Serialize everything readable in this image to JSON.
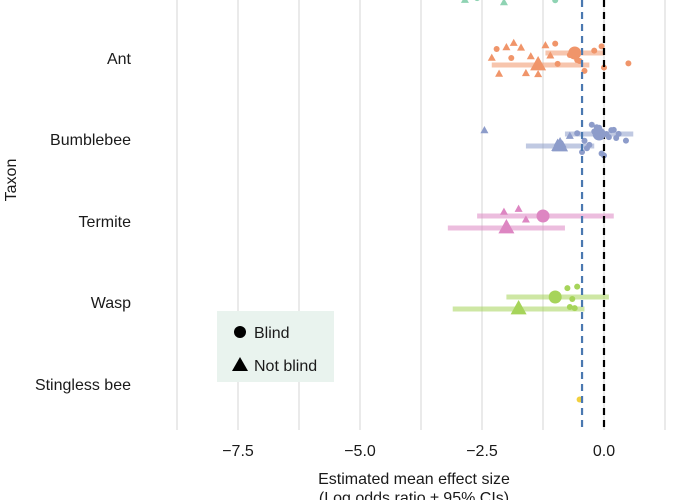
{
  "chart_data": {
    "type": "scatter",
    "xlabel": "Estimated mean effect size",
    "xlabel_line2": "(Log odds ratio ± 95% CIs)",
    "ylabel": "Taxon",
    "xlim": [
      -8.8,
      1.3
    ],
    "x_ticks": [
      -7.5,
      -5.0,
      -2.5,
      0.0
    ],
    "x_tick_labels": [
      "−7.5",
      "−5.0",
      "−2.5",
      "0.0"
    ],
    "x_minor_gridlines": [
      -8.75,
      -6.25,
      -3.75,
      -1.25,
      1.25
    ],
    "reference_lines": [
      {
        "x": 0.0,
        "style": "dashed",
        "color": "#000000"
      },
      {
        "x": -0.45,
        "style": "dashed",
        "color": "#4a78b0"
      }
    ],
    "categories": [
      "Ant",
      "Bumblebee",
      "Termite",
      "Wasp",
      "Stingless bee"
    ],
    "category_colors": {
      "Top": "#8fd3b3",
      "Ant": "#f0956a",
      "Bumblebee": "#8d9cca",
      "Termite": "#dd86c2",
      "Wasp": "#a6d45a",
      "Stingless bee": "#f2d03e"
    },
    "legend": {
      "placement": "bottom-left",
      "entries": [
        {
          "label": "Blind",
          "shape": "circle"
        },
        {
          "label": "Not blind",
          "shape": "triangle"
        }
      ]
    },
    "estimates": [
      {
        "taxon": "Ant",
        "group": "Blind",
        "mean": -0.6,
        "lo": -1.2,
        "hi": 0.0
      },
      {
        "taxon": "Ant",
        "group": "Not blind",
        "mean": -1.35,
        "lo": -2.3,
        "hi": -0.3
      },
      {
        "taxon": "Bumblebee",
        "group": "Blind",
        "mean": -0.1,
        "lo": -0.8,
        "hi": 0.6
      },
      {
        "taxon": "Bumblebee",
        "group": "Not blind",
        "mean": -0.9,
        "lo": -1.6,
        "hi": -0.2
      },
      {
        "taxon": "Termite",
        "group": "Blind",
        "mean": -1.25,
        "lo": -2.6,
        "hi": 0.2
      },
      {
        "taxon": "Termite",
        "group": "Not blind",
        "mean": -2.0,
        "lo": -3.2,
        "hi": -0.8
      },
      {
        "taxon": "Wasp",
        "group": "Blind",
        "mean": -1.0,
        "lo": -2.0,
        "hi": 0.1
      },
      {
        "taxon": "Wasp",
        "group": "Not blind",
        "mean": -1.75,
        "lo": -3.1,
        "hi": -0.4
      }
    ],
    "raw_points": [
      {
        "taxon": "Top",
        "group": "Not blind",
        "values": [
          -2.85,
          -2.05,
          -1.15,
          -0.55
        ]
      },
      {
        "taxon": "Top",
        "group": "Blind",
        "values": [
          -2.6,
          -1.0,
          -0.7
        ]
      },
      {
        "taxon": "Ant",
        "group": "Blind",
        "values": [
          -0.4,
          -0.5,
          -0.7,
          -0.2,
          0.0,
          0.5,
          -1.0,
          -1.9,
          -2.2,
          -0.95,
          -0.05,
          -0.55
        ]
      },
      {
        "taxon": "Ant",
        "group": "Not blind",
        "values": [
          -2.3,
          -2.0,
          -1.85,
          -1.6,
          -1.35,
          -1.2,
          -1.5,
          -2.15,
          -1.7,
          -1.1
        ]
      },
      {
        "taxon": "Bumblebee",
        "group": "Blind",
        "values": [
          -0.4,
          -0.3,
          -0.2,
          -0.1,
          0.0,
          0.1,
          0.2,
          0.45,
          -0.55,
          -0.15,
          -0.35,
          0.05,
          0.3,
          -0.25,
          -0.05,
          0.15,
          -0.45,
          0.25
        ]
      },
      {
        "taxon": "Bumblebee",
        "group": "Not blind",
        "values": [
          -2.45,
          -0.95,
          -0.7,
          -1.0,
          -0.85
        ]
      },
      {
        "taxon": "Termite",
        "group": "Not blind",
        "values": [
          -1.75,
          -2.05,
          -1.6
        ]
      },
      {
        "taxon": "Wasp",
        "group": "Blind",
        "values": [
          -0.75,
          -0.55,
          -0.65,
          -0.6,
          -0.7
        ]
      },
      {
        "taxon": "Stingless bee",
        "group": "Blind",
        "values": [
          -0.5
        ]
      }
    ]
  }
}
